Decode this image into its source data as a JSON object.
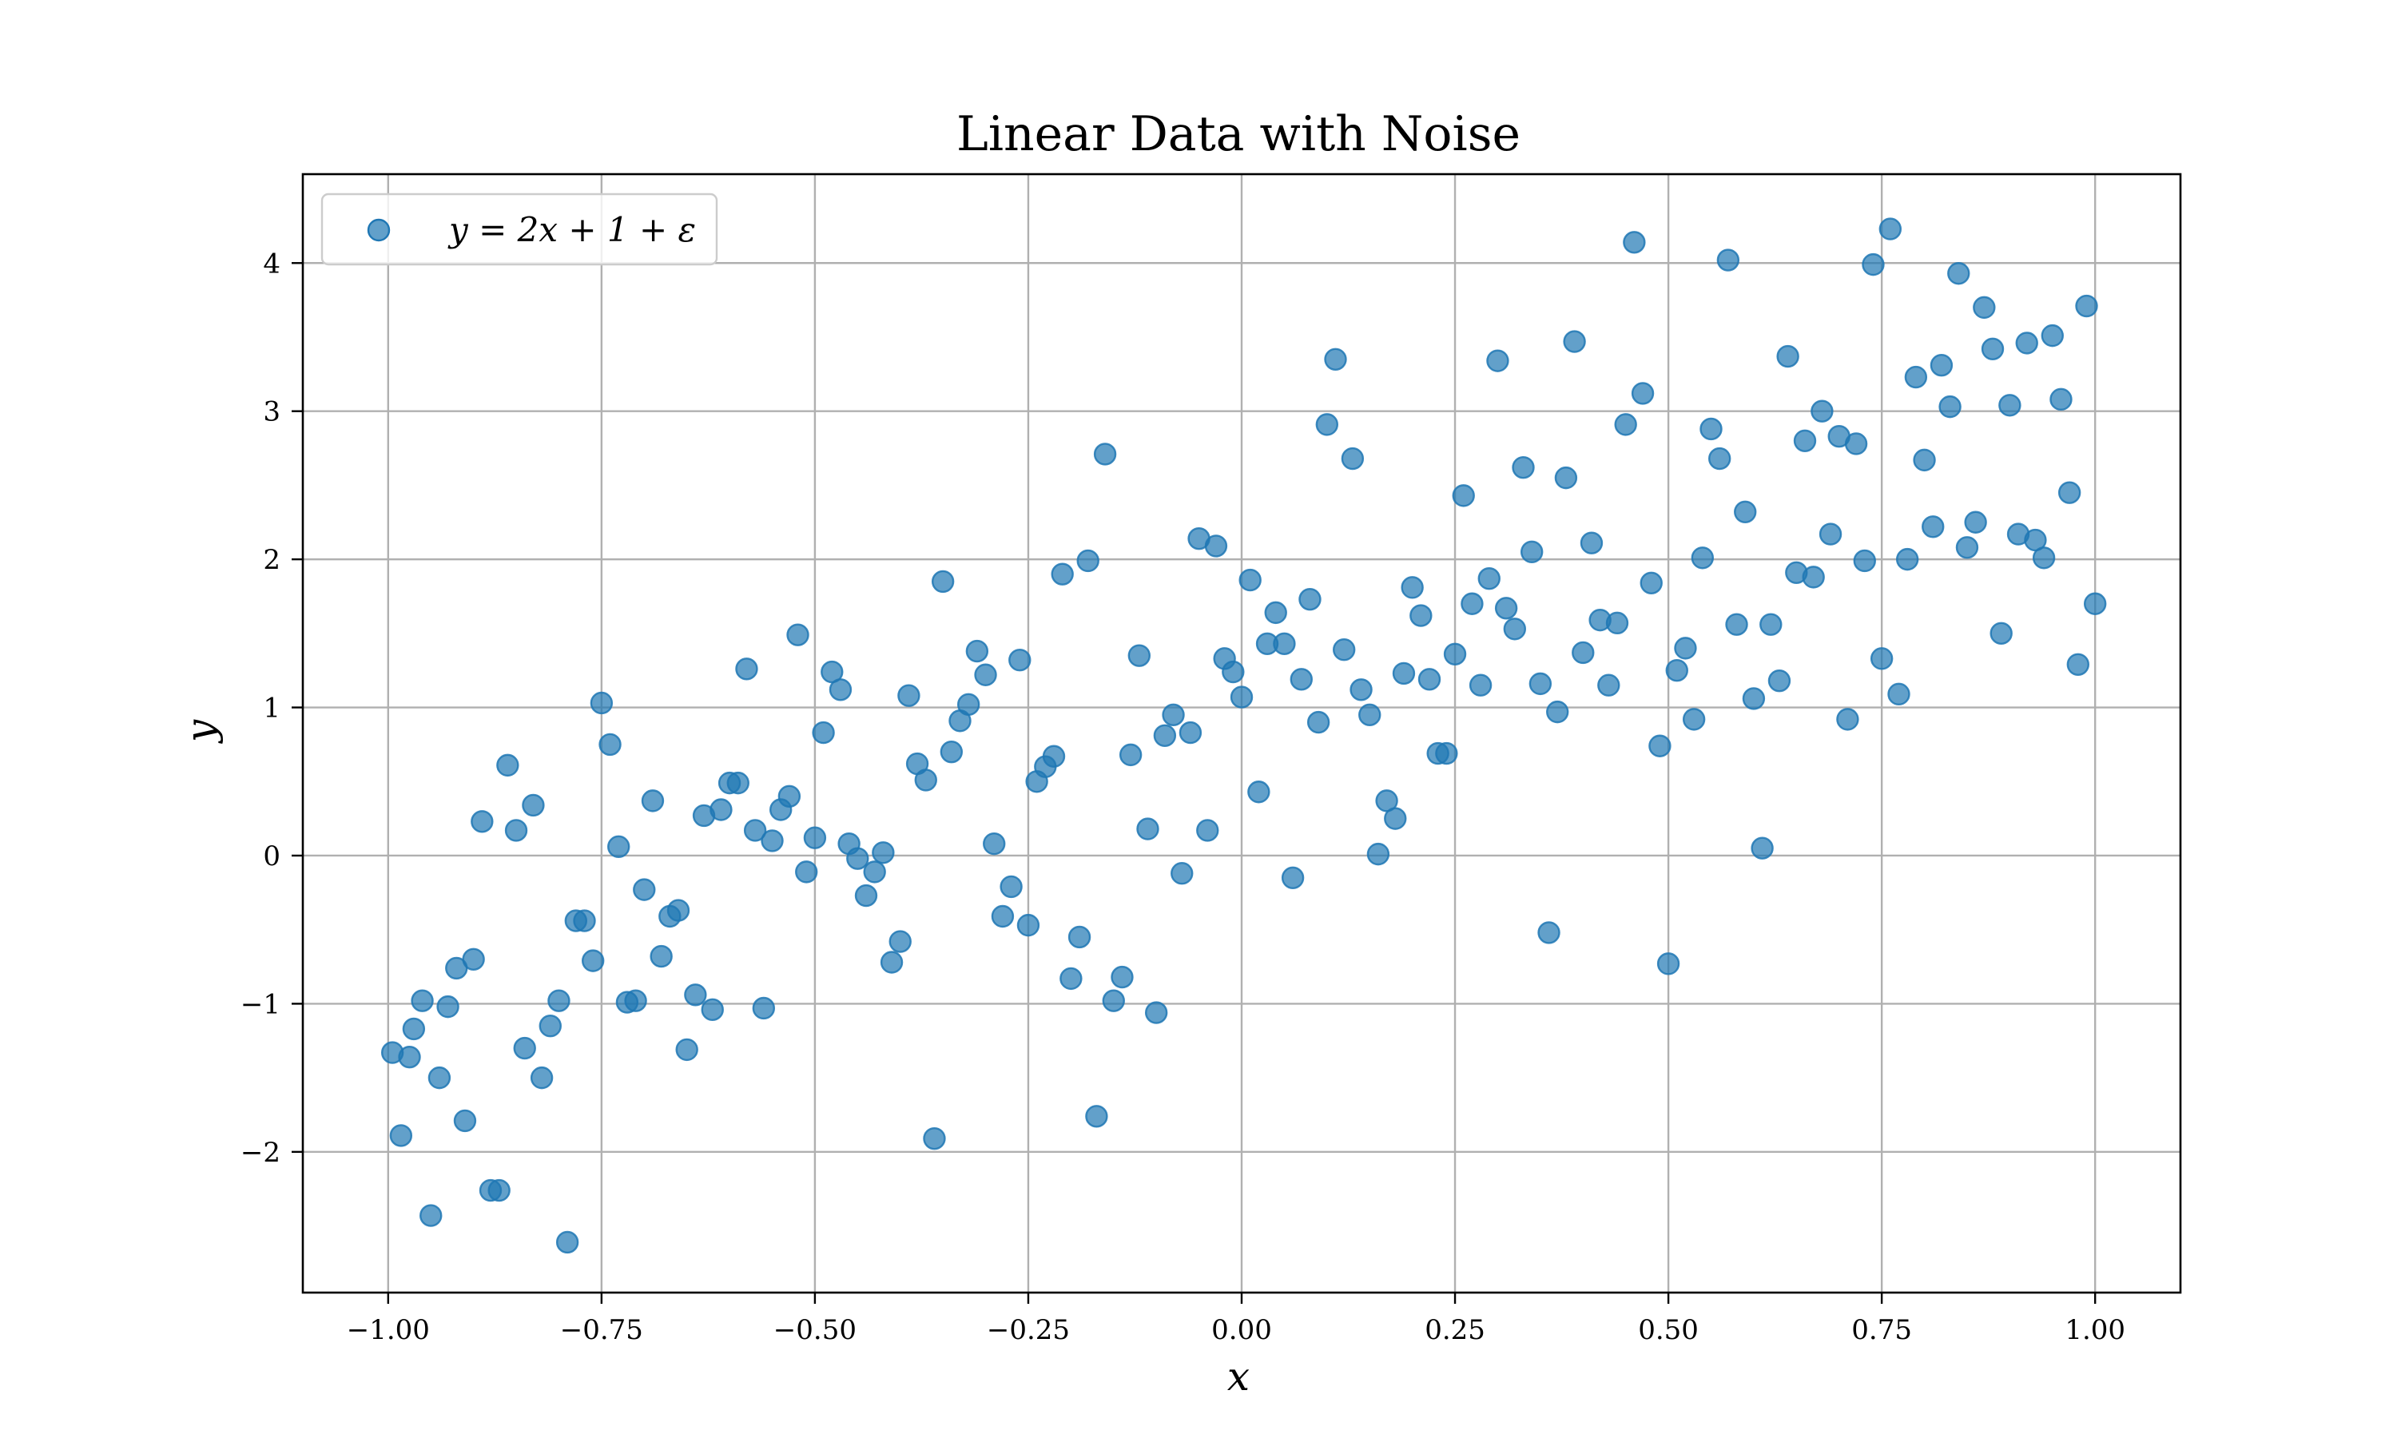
{
  "chart_data": {
    "type": "scatter",
    "title": "Linear Data with Noise",
    "xlabel": "x",
    "ylabel": "y",
    "xlim": [
      -1.1,
      1.1
    ],
    "ylim": [
      -2.95,
      4.6
    ],
    "xticks": [
      -1.0,
      -0.75,
      -0.5,
      -0.25,
      0.0,
      0.25,
      0.5,
      0.75,
      1.0
    ],
    "xtick_labels": [
      "−1.00",
      "−0.75",
      "−0.50",
      "−0.25",
      "0.00",
      "0.25",
      "0.50",
      "0.75",
      "1.00"
    ],
    "yticks": [
      -2,
      -1,
      0,
      1,
      2,
      3,
      4
    ],
    "ytick_labels": [
      "−2",
      "−1",
      "0",
      "1",
      "2",
      "3",
      "4"
    ],
    "grid": true,
    "legend_position": "upper-left",
    "point_color": "#1f77b4",
    "series": [
      {
        "name": "y = 2x + 1 + ε",
        "points": [
          [
            -0.995,
            -1.33
          ],
          [
            -0.985,
            -1.89
          ],
          [
            -0.975,
            -1.36
          ],
          [
            -0.97,
            -1.17
          ],
          [
            -0.96,
            -0.98
          ],
          [
            -0.95,
            -2.43
          ],
          [
            -0.94,
            -1.5
          ],
          [
            -0.93,
            -1.02
          ],
          [
            -0.92,
            -0.76
          ],
          [
            -0.91,
            -1.79
          ],
          [
            -0.9,
            -0.7
          ],
          [
            -0.89,
            0.23
          ],
          [
            -0.88,
            -2.26
          ],
          [
            -0.87,
            -2.26
          ],
          [
            -0.86,
            0.61
          ],
          [
            -0.85,
            0.17
          ],
          [
            -0.84,
            -1.3
          ],
          [
            -0.83,
            0.34
          ],
          [
            -0.82,
            -1.5
          ],
          [
            -0.81,
            -1.15
          ],
          [
            -0.8,
            -0.98
          ],
          [
            -0.79,
            -2.61
          ],
          [
            -0.78,
            -0.44
          ],
          [
            -0.77,
            -0.44
          ],
          [
            -0.76,
            -0.71
          ],
          [
            -0.75,
            1.03
          ],
          [
            -0.74,
            0.75
          ],
          [
            -0.73,
            0.06
          ],
          [
            -0.72,
            -0.99
          ],
          [
            -0.71,
            -0.98
          ],
          [
            -0.7,
            -0.23
          ],
          [
            -0.69,
            0.37
          ],
          [
            -0.68,
            -0.68
          ],
          [
            -0.67,
            -0.41
          ],
          [
            -0.66,
            -0.37
          ],
          [
            -0.65,
            -1.31
          ],
          [
            -0.64,
            -0.94
          ],
          [
            -0.63,
            0.27
          ],
          [
            -0.62,
            -1.04
          ],
          [
            -0.61,
            0.31
          ],
          [
            -0.6,
            0.49
          ],
          [
            -0.59,
            0.49
          ],
          [
            -0.58,
            1.26
          ],
          [
            -0.57,
            0.17
          ],
          [
            -0.56,
            -1.03
          ],
          [
            -0.55,
            0.1
          ],
          [
            -0.54,
            0.31
          ],
          [
            -0.53,
            0.4
          ],
          [
            -0.52,
            1.49
          ],
          [
            -0.51,
            -0.11
          ],
          [
            -0.5,
            0.12
          ],
          [
            -0.49,
            0.83
          ],
          [
            -0.48,
            1.24
          ],
          [
            -0.47,
            1.12
          ],
          [
            -0.46,
            0.08
          ],
          [
            -0.45,
            -0.02
          ],
          [
            -0.44,
            -0.27
          ],
          [
            -0.43,
            -0.11
          ],
          [
            -0.42,
            0.02
          ],
          [
            -0.41,
            -0.72
          ],
          [
            -0.4,
            -0.58
          ],
          [
            -0.39,
            1.08
          ],
          [
            -0.38,
            0.62
          ],
          [
            -0.37,
            0.51
          ],
          [
            -0.36,
            -1.91
          ],
          [
            -0.35,
            1.85
          ],
          [
            -0.34,
            0.7
          ],
          [
            -0.33,
            0.91
          ],
          [
            -0.32,
            1.02
          ],
          [
            -0.31,
            1.38
          ],
          [
            -0.3,
            1.22
          ],
          [
            -0.29,
            0.08
          ],
          [
            -0.28,
            -0.41
          ],
          [
            -0.27,
            -0.21
          ],
          [
            -0.26,
            1.32
          ],
          [
            -0.25,
            -0.47
          ],
          [
            -0.24,
            0.5
          ],
          [
            -0.23,
            0.6
          ],
          [
            -0.22,
            0.67
          ],
          [
            -0.21,
            1.9
          ],
          [
            -0.2,
            -0.83
          ],
          [
            -0.19,
            -0.55
          ],
          [
            -0.18,
            1.99
          ],
          [
            -0.17,
            -1.76
          ],
          [
            -0.16,
            2.71
          ],
          [
            -0.15,
            -0.98
          ],
          [
            -0.14,
            -0.82
          ],
          [
            -0.13,
            0.68
          ],
          [
            -0.12,
            1.35
          ],
          [
            -0.11,
            0.18
          ],
          [
            -0.1,
            -1.06
          ],
          [
            -0.09,
            0.81
          ],
          [
            -0.08,
            0.95
          ],
          [
            -0.07,
            -0.12
          ],
          [
            -0.06,
            0.83
          ],
          [
            -0.05,
            2.14
          ],
          [
            -0.04,
            0.17
          ],
          [
            -0.03,
            2.09
          ],
          [
            -0.02,
            1.33
          ],
          [
            -0.01,
            1.24
          ],
          [
            0.0,
            1.07
          ],
          [
            0.01,
            1.86
          ],
          [
            0.02,
            0.43
          ],
          [
            0.03,
            1.43
          ],
          [
            0.04,
            1.64
          ],
          [
            0.05,
            1.43
          ],
          [
            0.06,
            -0.15
          ],
          [
            0.07,
            1.19
          ],
          [
            0.08,
            1.73
          ],
          [
            0.09,
            0.9
          ],
          [
            0.1,
            2.91
          ],
          [
            0.11,
            3.35
          ],
          [
            0.12,
            1.39
          ],
          [
            0.13,
            2.68
          ],
          [
            0.14,
            1.12
          ],
          [
            0.15,
            0.95
          ],
          [
            0.16,
            0.01
          ],
          [
            0.17,
            0.37
          ],
          [
            0.18,
            0.25
          ],
          [
            0.19,
            1.23
          ],
          [
            0.2,
            1.81
          ],
          [
            0.21,
            1.62
          ],
          [
            0.22,
            1.19
          ],
          [
            0.23,
            0.69
          ],
          [
            0.24,
            0.69
          ],
          [
            0.25,
            1.36
          ],
          [
            0.26,
            2.43
          ],
          [
            0.27,
            1.7
          ],
          [
            0.28,
            1.15
          ],
          [
            0.29,
            1.87
          ],
          [
            0.3,
            3.34
          ],
          [
            0.31,
            1.67
          ],
          [
            0.32,
            1.53
          ],
          [
            0.33,
            2.62
          ],
          [
            0.34,
            2.05
          ],
          [
            0.35,
            1.16
          ],
          [
            0.36,
            -0.52
          ],
          [
            0.37,
            0.97
          ],
          [
            0.38,
            2.55
          ],
          [
            0.39,
            3.47
          ],
          [
            0.4,
            1.37
          ],
          [
            0.41,
            2.11
          ],
          [
            0.42,
            1.59
          ],
          [
            0.43,
            1.15
          ],
          [
            0.44,
            1.57
          ],
          [
            0.45,
            2.91
          ],
          [
            0.46,
            4.14
          ],
          [
            0.47,
            3.12
          ],
          [
            0.48,
            1.84
          ],
          [
            0.49,
            0.74
          ],
          [
            0.5,
            -0.73
          ],
          [
            0.51,
            1.25
          ],
          [
            0.52,
            1.4
          ],
          [
            0.53,
            0.92
          ],
          [
            0.54,
            2.01
          ],
          [
            0.55,
            2.88
          ],
          [
            0.56,
            2.68
          ],
          [
            0.57,
            4.02
          ],
          [
            0.58,
            1.56
          ],
          [
            0.59,
            2.32
          ],
          [
            0.6,
            1.06
          ],
          [
            0.61,
            0.05
          ],
          [
            0.62,
            1.56
          ],
          [
            0.63,
            1.18
          ],
          [
            0.64,
            3.37
          ],
          [
            0.65,
            1.91
          ],
          [
            0.66,
            2.8
          ],
          [
            0.67,
            1.88
          ],
          [
            0.68,
            3.0
          ],
          [
            0.69,
            2.17
          ],
          [
            0.7,
            2.83
          ],
          [
            0.71,
            0.92
          ],
          [
            0.72,
            2.78
          ],
          [
            0.73,
            1.99
          ],
          [
            0.74,
            3.99
          ],
          [
            0.75,
            1.33
          ],
          [
            0.76,
            4.23
          ],
          [
            0.77,
            1.09
          ],
          [
            0.78,
            2.0
          ],
          [
            0.79,
            3.23
          ],
          [
            0.8,
            2.67
          ],
          [
            0.81,
            2.22
          ],
          [
            0.82,
            3.31
          ],
          [
            0.83,
            3.03
          ],
          [
            0.84,
            3.93
          ],
          [
            0.85,
            2.08
          ],
          [
            0.86,
            2.25
          ],
          [
            0.87,
            3.7
          ],
          [
            0.88,
            3.42
          ],
          [
            0.89,
            1.5
          ],
          [
            0.9,
            3.04
          ],
          [
            0.91,
            2.17
          ],
          [
            0.92,
            3.46
          ],
          [
            0.93,
            2.13
          ],
          [
            0.94,
            2.01
          ],
          [
            0.95,
            3.51
          ],
          [
            0.96,
            3.08
          ],
          [
            0.97,
            2.45
          ],
          [
            0.98,
            1.29
          ],
          [
            0.99,
            3.71
          ],
          [
            1.0,
            1.7
          ]
        ]
      }
    ]
  }
}
